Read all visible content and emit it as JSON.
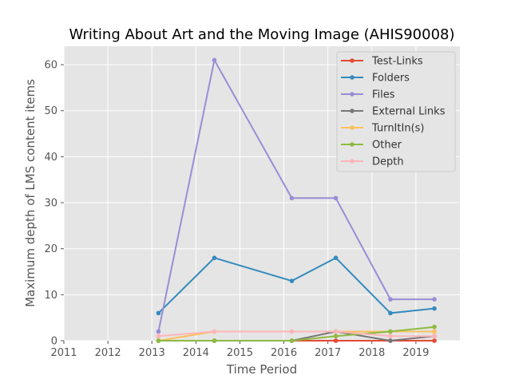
{
  "chart_data": {
    "type": "line",
    "title": "Writing About Art and the Moving Image (AHIS90008)",
    "xlabel": "Time Period",
    "ylabel": "Maximum depth of LMS content items",
    "xlim": [
      2011,
      2020
    ],
    "ylim": [
      0,
      64
    ],
    "x_ticks": [
      2011,
      2012,
      2013,
      2014,
      2015,
      2016,
      2017,
      2018,
      2019
    ],
    "y_ticks": [
      0,
      10,
      20,
      30,
      40,
      50,
      60
    ],
    "grid": true,
    "legend_position": "top-right",
    "x": [
      2013.15,
      2014.42,
      2016.18,
      2017.18,
      2018.42,
      2019.42
    ],
    "series": [
      {
        "name": "Test-Links",
        "color": "#E24A33",
        "values": [
          0,
          0,
          0,
          0,
          0,
          0
        ]
      },
      {
        "name": "Folders",
        "color": "#348ABD",
        "values": [
          6,
          18,
          13,
          18,
          6,
          7
        ]
      },
      {
        "name": "Files",
        "color": "#988ED5",
        "values": [
          2,
          61,
          31,
          31,
          9,
          9
        ]
      },
      {
        "name": "External Links",
        "color": "#777777",
        "values": [
          0,
          0,
          0,
          2,
          0,
          1
        ]
      },
      {
        "name": "TurnItIn(s)",
        "color": "#FBC15E",
        "values": [
          0,
          2,
          2,
          2,
          2,
          2
        ]
      },
      {
        "name": "Other",
        "color": "#8EBA42",
        "values": [
          0,
          0,
          0,
          1,
          2,
          3
        ]
      },
      {
        "name": "Depth",
        "color": "#FFB5B8",
        "values": [
          1,
          2,
          2,
          2,
          1,
          1
        ]
      }
    ]
  }
}
